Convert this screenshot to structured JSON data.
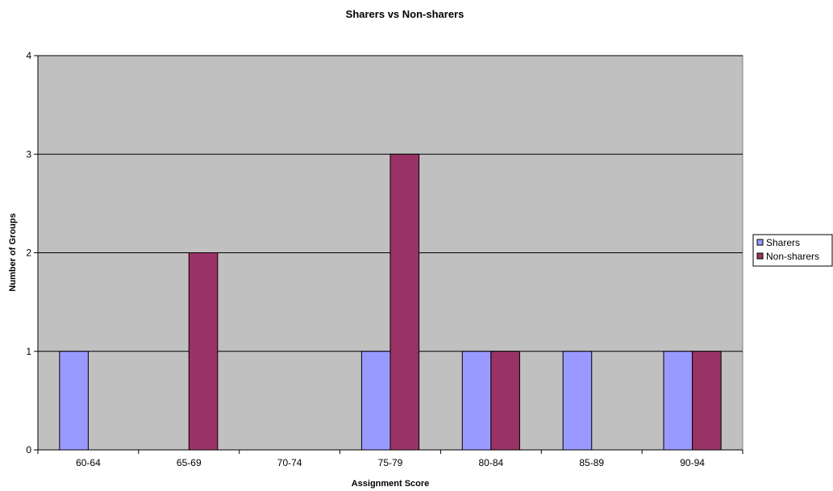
{
  "chart_data": {
    "type": "bar",
    "title": "Sharers vs Non-sharers",
    "xlabel": "Assignment Score",
    "ylabel": "Number of Groups",
    "categories": [
      "60-64",
      "65-69",
      "70-74",
      "75-79",
      "80-84",
      "85-89",
      "90-94"
    ],
    "series": [
      {
        "name": "Sharers",
        "values": [
          1,
          0,
          0,
          1,
          1,
          1,
          1
        ],
        "color": "#9999ff"
      },
      {
        "name": "Non-sharers",
        "values": [
          0,
          2,
          0,
          3,
          1,
          0,
          1
        ],
        "color": "#993366"
      }
    ],
    "ylim": [
      0,
      4
    ],
    "yticks": [
      0,
      1,
      2,
      3,
      4
    ],
    "grid": true,
    "legend_position": "right",
    "plot_background": "#c0c0c0"
  }
}
